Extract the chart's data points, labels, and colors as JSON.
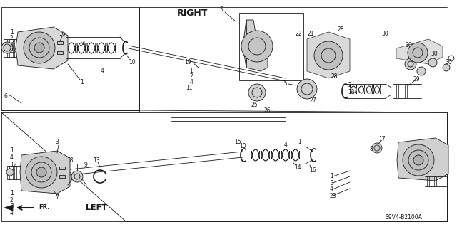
{
  "bg_color": "#ffffff",
  "line_color": "#1a1a1a",
  "right_label": "RIGHT",
  "left_label": "LEFT",
  "fr_label": "FR.",
  "part_code": "S9V4-B2100A",
  "figsize": [
    6.4,
    3.19
  ],
  "dpi": 100
}
